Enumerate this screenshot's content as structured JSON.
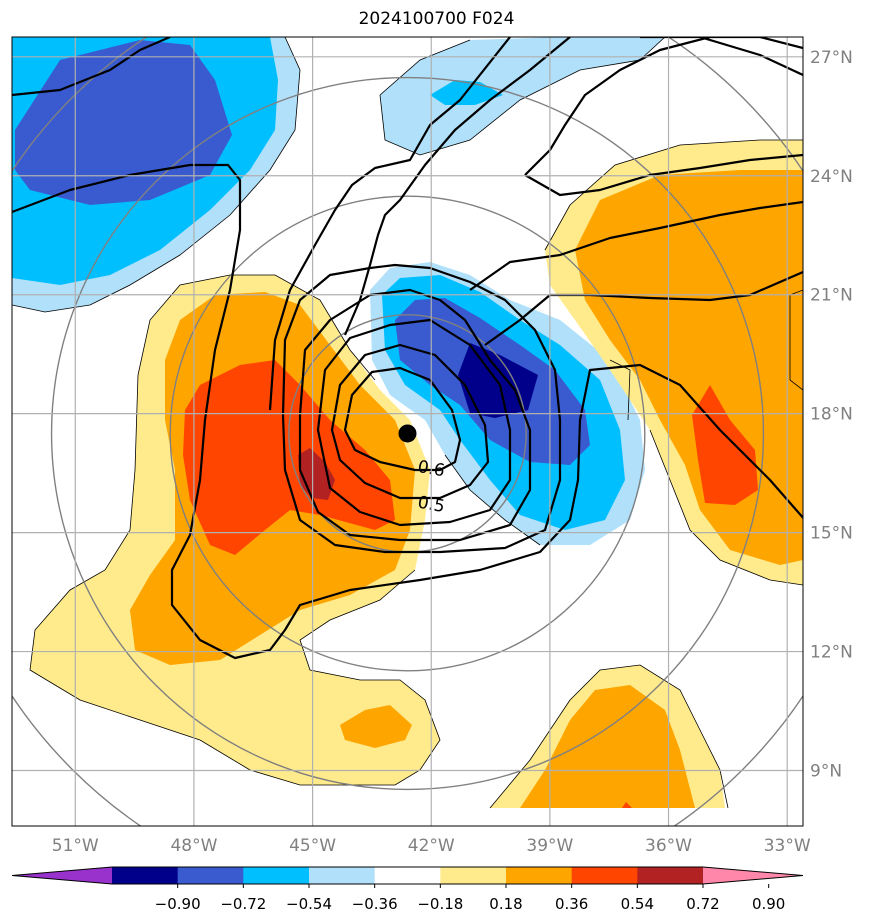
{
  "title": "2024100700 F024",
  "longitude_ticks": [
    {
      "lon": -51,
      "label": "51°W"
    },
    {
      "lon": -48,
      "label": "48°W"
    },
    {
      "lon": -45,
      "label": "45°W"
    },
    {
      "lon": -42,
      "label": "42°W"
    },
    {
      "lon": -39,
      "label": "39°W"
    },
    {
      "lon": -36,
      "label": "36°W"
    },
    {
      "lon": -33,
      "label": "33°W"
    }
  ],
  "latitude_ticks": [
    {
      "lat": 9,
      "label": "9°N"
    },
    {
      "lat": 12,
      "label": "12°N"
    },
    {
      "lat": 15,
      "label": "15°N"
    },
    {
      "lat": 18,
      "label": "18°N"
    },
    {
      "lat": 21,
      "label": "21°N"
    },
    {
      "lat": 24,
      "label": "24°N"
    },
    {
      "lat": 27,
      "label": "27°N"
    }
  ],
  "extent": {
    "lon_min": -52.6,
    "lon_max": -32.6,
    "lat_min": 7.6,
    "lat_max": 27.5
  },
  "storm_center": {
    "lon": -42.6,
    "lat": 17.5
  },
  "range_rings_deg": [
    3,
    6,
    9,
    12
  ],
  "contour_labels": [
    {
      "text": "0.6",
      "lon": -42.0,
      "lat": 16.6
    },
    {
      "text": "0.5",
      "lon": -42.0,
      "lat": 15.7
    }
  ],
  "colorbar": {
    "ticks": [
      "−0.90",
      "−0.72",
      "−0.54",
      "−0.36",
      "−0.18",
      "0.18",
      "0.36",
      "0.54",
      "0.72",
      "0.90"
    ],
    "colors": [
      "#9932cc",
      "#00008b",
      "#3a5bd0",
      "#00bfff",
      "#b0e0fa",
      "#ffffff",
      "#ffeb8c",
      "#ffa500",
      "#ff4500",
      "#b22222",
      "#ff88aa"
    ]
  },
  "fill_colors": {
    "dark_navy": "#00008b",
    "royal_blue": "#3a5bd0",
    "sky_blue": "#00bfff",
    "light_blue": "#b0e0fa",
    "light_yellow": "#ffeb8c",
    "orange": "#ffa500",
    "orange_red": "#ff4500",
    "firebrick": "#b22222"
  }
}
